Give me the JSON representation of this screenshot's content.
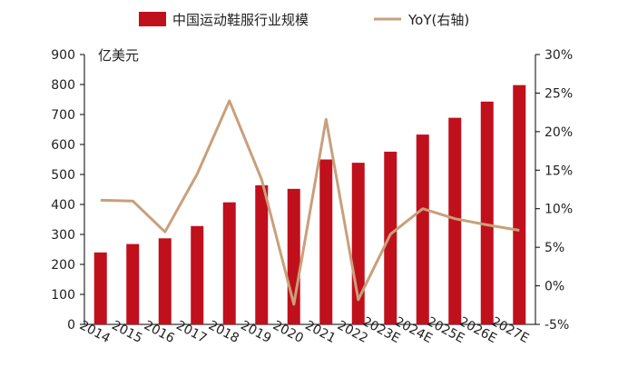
{
  "chart_data": {
    "type": "bar",
    "categories": [
      "2014",
      "2015",
      "2016",
      "2017",
      "2018",
      "2019",
      "2020",
      "2021",
      "2022",
      "2023E",
      "2024E",
      "2025E",
      "2026E",
      "2027E"
    ],
    "series": [
      {
        "name": "中国运动鞋服行业规模",
        "type": "bar",
        "axis": "left",
        "color": "#c0101c",
        "values": [
          240,
          268,
          287,
          328,
          407,
          464,
          452,
          550,
          539,
          576,
          633,
          689,
          743,
          798
        ]
      },
      {
        "name": "YoY(右轴)",
        "type": "line",
        "axis": "right",
        "color": "#c8a07c",
        "values": [
          11.1,
          11.0,
          7.0,
          14.5,
          24.0,
          13.8,
          -2.4,
          21.6,
          -1.8,
          6.7,
          10.0,
          8.7,
          7.9,
          7.2
        ]
      }
    ],
    "y_left": {
      "unit_label": "亿美元",
      "min": 0,
      "max": 900,
      "ticks": [
        "0",
        "100",
        "200",
        "300",
        "400",
        "500",
        "600",
        "700",
        "800",
        "900"
      ]
    },
    "y_right": {
      "min": -5,
      "max": 30,
      "ticks": [
        "-5%",
        "0%",
        "5%",
        "10%",
        "15%",
        "20%",
        "25%",
        "30%"
      ]
    },
    "legend_position": "top"
  }
}
